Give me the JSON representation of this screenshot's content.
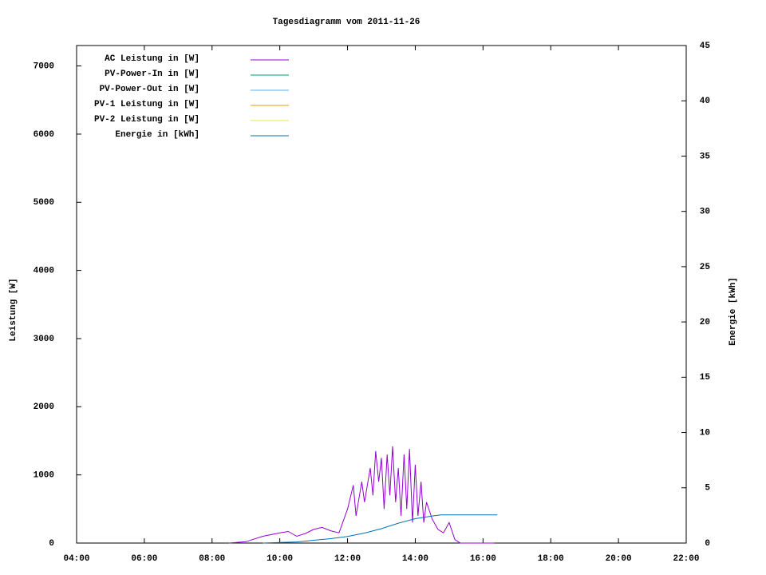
{
  "chart_data": {
    "type": "line",
    "title": "Tagesdiagramm vom 2011-11-26",
    "y_label": "Leistung [W]",
    "y2_label": "Energie [kWh]",
    "xlim": [
      4,
      22
    ],
    "xticks": [
      {
        "value": 4,
        "label": "04:00"
      },
      {
        "value": 6,
        "label": "06:00"
      },
      {
        "value": 8,
        "label": "08:00"
      },
      {
        "value": 10,
        "label": "10:00"
      },
      {
        "value": 12,
        "label": "12:00"
      },
      {
        "value": 14,
        "label": "14:00"
      },
      {
        "value": 16,
        "label": "16:00"
      },
      {
        "value": 18,
        "label": "18:00"
      },
      {
        "value": 20,
        "label": "20:00"
      },
      {
        "value": 22,
        "label": "22:00"
      }
    ],
    "ylim": [
      0,
      7300
    ],
    "yticks": [
      0,
      1000,
      2000,
      3000,
      4000,
      5000,
      6000,
      7000
    ],
    "y2lim": [
      0,
      45
    ],
    "y2ticks": [
      0,
      5,
      10,
      15,
      20,
      25,
      30,
      35,
      40,
      45
    ],
    "legend": "top-left",
    "series": [
      {
        "name": "AC Leistung in [W]",
        "color": "#9400d3",
        "x": [
          8.5,
          9,
          9.5,
          10,
          10.25,
          10.5,
          10.75,
          11,
          11.25,
          11.5,
          11.75,
          12,
          12.17,
          12.25,
          12.42,
          12.5,
          12.67,
          12.75,
          12.83,
          12.92,
          13,
          13.08,
          13.17,
          13.25,
          13.33,
          13.42,
          13.5,
          13.58,
          13.67,
          13.75,
          13.83,
          13.92,
          14,
          14.08,
          14.17,
          14.25,
          14.33,
          14.5,
          14.67,
          14.83,
          15,
          15.17,
          15.33,
          16,
          16.33
        ],
        "values": [
          0,
          20,
          100,
          150,
          170,
          100,
          140,
          200,
          230,
          180,
          150,
          500,
          850,
          400,
          900,
          600,
          1100,
          700,
          1350,
          900,
          1250,
          500,
          1300,
          700,
          1420,
          600,
          1100,
          400,
          1300,
          500,
          1380,
          300,
          1150,
          400,
          900,
          300,
          600,
          350,
          200,
          150,
          300,
          50,
          0,
          0,
          0
        ]
      },
      {
        "name": "PV-Power-In in [W]",
        "color": "#009e73",
        "x": [],
        "values": []
      },
      {
        "name": "PV-Power-Out in [W]",
        "color": "#56b4e9",
        "x": [],
        "values": []
      },
      {
        "name": "PV-1 Leistung in [W]",
        "color": "#e69f00",
        "x": [],
        "values": []
      },
      {
        "name": "PV-2 Leistung in [W]",
        "color": "#f0e442",
        "x": [],
        "values": []
      },
      {
        "name": "Energie in [kWh]",
        "color": "#0072b2",
        "axis": "y2",
        "x": [
          9.5,
          10,
          10.5,
          11,
          11.5,
          12,
          12.5,
          13,
          13.5,
          14,
          14.5,
          14.75,
          16.42
        ],
        "values": [
          0,
          0.05,
          0.1,
          0.25,
          0.4,
          0.6,
          0.9,
          1.3,
          1.8,
          2.2,
          2.45,
          2.55,
          2.55
        ]
      }
    ]
  }
}
